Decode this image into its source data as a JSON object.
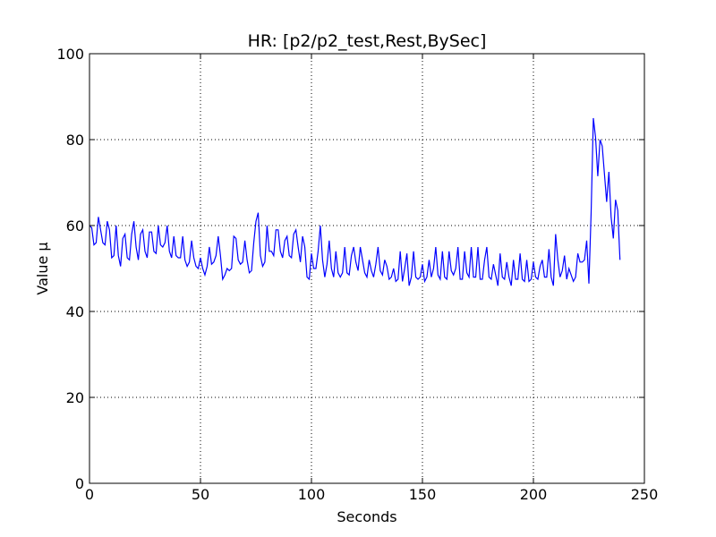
{
  "chart_data": {
    "type": "line",
    "title": "HR: [p2/p2_test,Rest,BySec]",
    "x_label": "Seconds",
    "y_label": "Value μ",
    "xlim": [
      0,
      250
    ],
    "xticks": [
      0,
      50,
      100,
      150,
      200,
      250
    ],
    "ylim": [
      0,
      100
    ],
    "yticks": [
      0,
      20,
      40,
      60,
      80,
      100
    ],
    "grid": true,
    "series": [
      {
        "color": "#0000ff",
        "x": [
          0,
          1,
          2,
          3,
          4,
          5,
          6,
          7,
          8,
          9,
          10,
          11,
          12,
          13,
          14,
          15,
          16,
          17,
          18,
          19,
          20,
          21,
          22,
          23,
          24,
          25,
          26,
          27,
          28,
          29,
          30,
          31,
          32,
          33,
          34,
          35,
          36,
          37,
          38,
          39,
          40,
          41,
          42,
          43,
          44,
          45,
          46,
          47,
          48,
          49,
          50,
          51,
          52,
          53,
          54,
          55,
          56,
          57,
          58,
          59,
          60,
          61,
          62,
          63,
          64,
          65,
          66,
          67,
          68,
          69,
          70,
          71,
          72,
          73,
          74,
          75,
          76,
          77,
          78,
          79,
          80,
          81,
          82,
          83,
          84,
          85,
          86,
          87,
          88,
          89,
          90,
          91,
          92,
          93,
          94,
          95,
          96,
          97,
          98,
          99,
          100,
          101,
          102,
          103,
          104,
          105,
          106,
          107,
          108,
          109,
          110,
          111,
          112,
          113,
          114,
          115,
          116,
          117,
          118,
          119,
          120,
          121,
          122,
          123,
          124,
          125,
          126,
          127,
          128,
          129,
          130,
          131,
          132,
          133,
          134,
          135,
          136,
          137,
          138,
          139,
          140,
          141,
          142,
          143,
          144,
          145,
          146,
          147,
          148,
          149,
          150,
          151,
          152,
          153,
          154,
          155,
          156,
          157,
          158,
          159,
          160,
          161,
          162,
          163,
          164,
          165,
          166,
          167,
          168,
          169,
          170,
          171,
          172,
          173,
          174,
          175,
          176,
          177,
          178,
          179,
          180,
          181,
          182,
          183,
          184,
          185,
          186,
          187,
          188,
          189,
          190,
          191,
          192,
          193,
          194,
          195,
          196,
          197,
          198,
          199,
          200,
          201,
          202,
          203,
          204,
          205,
          206,
          207,
          208,
          209,
          210,
          211,
          212,
          213,
          214,
          215,
          216,
          217,
          218,
          219,
          220,
          221,
          222,
          223,
          224,
          225,
          226,
          227,
          228,
          229,
          230,
          231,
          232,
          233,
          234,
          235,
          236,
          237,
          238,
          239
        ],
        "values": [
          60,
          59.5,
          55.5,
          56,
          62,
          59,
          56,
          55.5,
          61,
          59,
          52.5,
          53,
          60,
          53,
          50.5,
          57,
          58,
          52.5,
          52,
          58,
          61,
          55,
          52,
          58,
          59,
          54,
          52.5,
          58.5,
          58.5,
          54,
          53.5,
          60,
          55.5,
          55,
          56,
          60,
          54,
          52.5,
          57.5,
          53,
          52.5,
          52.5,
          57.5,
          52,
          50.5,
          51.5,
          56.5,
          52.5,
          50.5,
          50,
          52.5,
          50,
          48.5,
          50.5,
          55,
          51,
          51.5,
          53,
          57.5,
          53,
          47.5,
          48.5,
          50,
          49.5,
          50,
          57.5,
          57,
          52,
          51,
          51.5,
          56.5,
          52,
          49,
          49.5,
          56,
          61,
          63,
          53,
          50.5,
          51.5,
          60,
          54,
          54,
          53,
          59,
          59,
          54,
          52.5,
          56.5,
          57.5,
          53,
          52.5,
          58,
          59,
          55,
          51.5,
          57.5,
          55,
          48,
          47.5,
          53.5,
          50,
          50,
          54,
          60,
          52,
          48,
          51,
          56.5,
          50,
          48,
          54,
          49,
          48,
          49,
          55,
          49,
          48.5,
          53,
          55,
          51.5,
          49.5,
          55,
          52,
          49,
          48,
          52,
          49.5,
          48,
          51,
          55,
          49.5,
          48.5,
          52,
          50.5,
          47.5,
          48,
          50,
          47,
          47.5,
          54,
          47,
          50,
          53.5,
          46,
          48,
          54,
          48,
          47.5,
          48,
          51,
          47,
          48,
          52,
          48,
          50,
          55,
          48.5,
          47.5,
          54,
          48,
          47.5,
          54,
          49.5,
          48.5,
          50,
          55,
          47.5,
          47.5,
          54,
          49,
          48,
          55,
          48,
          48,
          55,
          47.5,
          47.5,
          52,
          55,
          48,
          47.5,
          51,
          48.5,
          46,
          53.5,
          48,
          47.5,
          51.5,
          48,
          46,
          52,
          47.5,
          47.5,
          53.5,
          47.5,
          47,
          52,
          47,
          47.5,
          51.5,
          48,
          47.5,
          50.5,
          52,
          48,
          48,
          54.5,
          48,
          46,
          58,
          52,
          48,
          49.5,
          53,
          47.5,
          50,
          48.5,
          47,
          48,
          53.5,
          51.5,
          51.5,
          52,
          56.5,
          46.5,
          63,
          85,
          80.5,
          71.5,
          80,
          78.5,
          72,
          65.5,
          72.5,
          62,
          57,
          66,
          63.5,
          52
        ]
      }
    ]
  }
}
